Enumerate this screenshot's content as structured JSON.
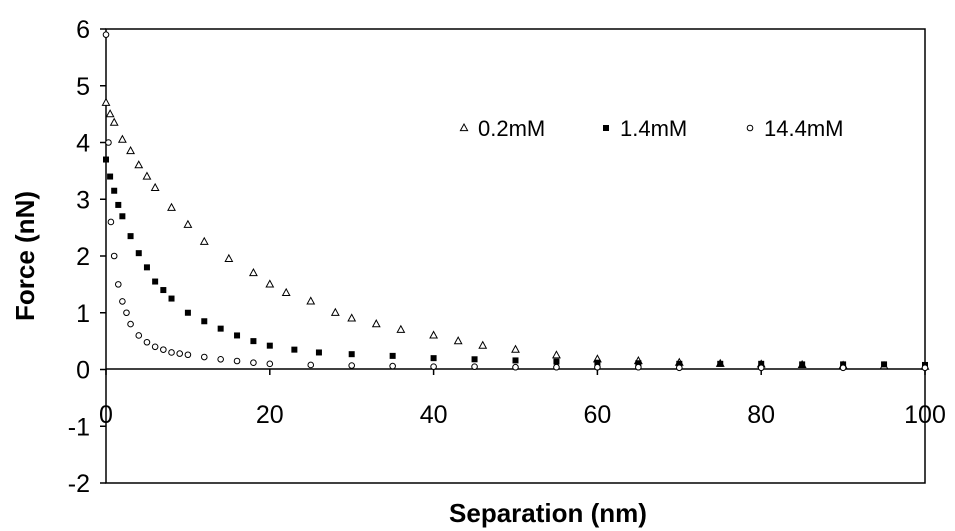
{
  "chart_data": {
    "type": "scatter",
    "xlabel": "Separation (nm)",
    "ylabel": "Force (nN)",
    "xlim": [
      0,
      100
    ],
    "ylim": [
      -2,
      6
    ],
    "xticks": [
      0,
      20,
      40,
      60,
      80,
      100
    ],
    "yticks": [
      -2,
      -1,
      0,
      1,
      2,
      3,
      4,
      5,
      6
    ],
    "grid": false,
    "legend_position": "top-right",
    "series": [
      {
        "name": "0.2mM",
        "marker": "open-triangle",
        "x": [
          0,
          0.5,
          1,
          2,
          3,
          4,
          5,
          6,
          8,
          10,
          12,
          15,
          18,
          20,
          22,
          25,
          28,
          30,
          33,
          36,
          40,
          43,
          46,
          50,
          55,
          60,
          65,
          70,
          75,
          80,
          85,
          90,
          95,
          100
        ],
        "y": [
          4.7,
          4.5,
          4.35,
          4.05,
          3.85,
          3.6,
          3.4,
          3.2,
          2.85,
          2.55,
          2.25,
          1.95,
          1.7,
          1.5,
          1.35,
          1.2,
          1.0,
          0.9,
          0.8,
          0.7,
          0.6,
          0.5,
          0.42,
          0.35,
          0.25,
          0.18,
          0.15,
          0.12,
          0.1,
          0.09,
          0.08,
          0.07,
          0.06,
          0.05
        ]
      },
      {
        "name": "1.4mM",
        "marker": "filled-square",
        "x": [
          0,
          0.5,
          1,
          1.5,
          2,
          3,
          4,
          5,
          6,
          7,
          8,
          10,
          12,
          14,
          16,
          18,
          20,
          23,
          26,
          30,
          35,
          40,
          45,
          50,
          55,
          60,
          65,
          70,
          75,
          80,
          85,
          90,
          95,
          100
        ],
        "y": [
          3.7,
          3.4,
          3.15,
          2.9,
          2.7,
          2.35,
          2.05,
          1.8,
          1.55,
          1.4,
          1.25,
          1.0,
          0.85,
          0.72,
          0.6,
          0.5,
          0.42,
          0.35,
          0.3,
          0.27,
          0.24,
          0.2,
          0.18,
          0.16,
          0.14,
          0.12,
          0.11,
          0.1,
          0.1,
          0.1,
          0.09,
          0.09,
          0.09,
          0.08
        ]
      },
      {
        "name": "14.4mM",
        "marker": "open-circle",
        "x": [
          0,
          0.3,
          0.6,
          1,
          1.5,
          2,
          2.5,
          3,
          4,
          5,
          6,
          7,
          8,
          9,
          10,
          12,
          14,
          16,
          18,
          20,
          25,
          30,
          35,
          40,
          45,
          50,
          55,
          60,
          65,
          70,
          80,
          90,
          100
        ],
        "y": [
          5.9,
          4.0,
          2.6,
          2.0,
          1.5,
          1.2,
          1.0,
          0.8,
          0.6,
          0.48,
          0.4,
          0.35,
          0.3,
          0.28,
          0.26,
          0.22,
          0.18,
          0.15,
          0.12,
          0.1,
          0.08,
          0.07,
          0.06,
          0.05,
          0.05,
          0.04,
          0.04,
          0.04,
          0.04,
          0.03,
          0.03,
          0.03,
          0.03
        ]
      }
    ]
  }
}
